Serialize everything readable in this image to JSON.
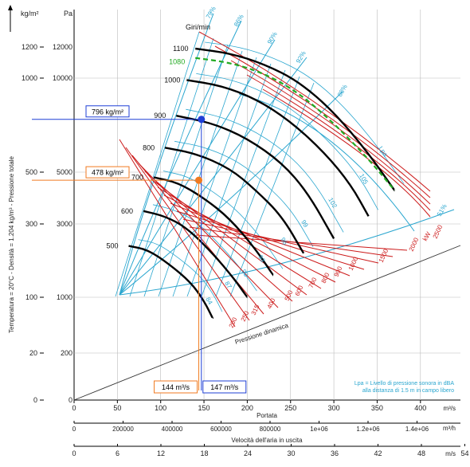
{
  "chart_data": {
    "type": "line",
    "title": "",
    "axes": {
      "left_outer_label": "kg/m²",
      "left_outer_ticks": [
        "1200",
        "1000",
        "500",
        "300",
        "100",
        "20",
        "0"
      ],
      "left_inner_label": "Pa",
      "left_inner_ticks": [
        "12000",
        "10000",
        "5000",
        "3000",
        "1000",
        "200",
        "0"
      ],
      "vertical_title": "Temperatura = 20°C  -  Densità = 1.204 kg/m³  -  Pressione totale",
      "x_label": "Portata",
      "x_unit": "m³/s",
      "x_ticks": [
        "0",
        "50",
        "100",
        "150",
        "200",
        "250",
        "300",
        "350",
        "400"
      ],
      "x2_unit": "m³/h",
      "x2_ticks": [
        "0",
        "200000",
        "400000",
        "600000",
        "800000",
        "1e+06",
        "1.2e+06",
        "1.4e+06"
      ],
      "x3_label": "Velocità dell'aria in uscita",
      "x3_unit": "m/s",
      "x3_ticks": [
        "0",
        "6",
        "12",
        "18",
        "24",
        "30",
        "36",
        "42",
        "48",
        "54"
      ],
      "speed_label": "Giri/min",
      "dynamic_pressure_label": "Pressione dinamica"
    },
    "rpm_curves": [
      {
        "name": "1100",
        "flow": [
          140,
          180,
          220,
          260,
          300,
          340,
          370
        ],
        "pressure_pa": [
          11900,
          11600,
          10900,
          9800,
          8200,
          6000,
          4300
        ]
      },
      {
        "name": "1000",
        "flow": [
          130,
          170,
          210,
          250,
          290,
          320,
          340
        ],
        "pressure_pa": [
          9900,
          9600,
          8900,
          7700,
          6000,
          4500,
          3300
        ]
      },
      {
        "name": "900",
        "flow": [
          118,
          160,
          200,
          240,
          270,
          300
        ],
        "pressure_pa": [
          8000,
          7600,
          6800,
          5500,
          4200,
          2600
        ]
      },
      {
        "name": "800",
        "flow": [
          105,
          140,
          180,
          210,
          240,
          265
        ],
        "pressure_pa": [
          6300,
          6000,
          5200,
          4300,
          3300,
          2200
        ]
      },
      {
        "name": "700",
        "flow": [
          92,
          120,
          150,
          180,
          210,
          230
        ],
        "pressure_pa": [
          4800,
          4600,
          4000,
          3200,
          2300,
          1600
        ]
      },
      {
        "name": "600",
        "flow": [
          80,
          105,
          130,
          160,
          185,
          200
        ],
        "pressure_pa": [
          3500,
          3300,
          2900,
          2200,
          1500,
          1000
        ]
      },
      {
        "name": "500",
        "flow": [
          63,
          85,
          110,
          135,
          150,
          160
        ],
        "pressure_pa": [
          2400,
          2300,
          1900,
          1400,
          950,
          700
        ]
      }
    ],
    "rpm_1080_curve": {
      "name": "1080",
      "flow": [
        140,
        180,
        220,
        260,
        300,
        340,
        370
      ],
      "pressure_pa": [
        11300,
        11000,
        10300,
        9200,
        7600,
        5700,
        4300
      ]
    },
    "power_labels_kw": [
      "200",
      "250",
      "315",
      "400",
      "500",
      "600",
      "700",
      "800",
      "900",
      "1000",
      "1500",
      "2000",
      "2500"
    ],
    "power_unit": "kW",
    "efficiency_labels": [
      "79%",
      "86%",
      "90%",
      "92%",
      "88%",
      "51%"
    ],
    "sound_labels": [
      "84",
      "87",
      "90",
      "93",
      "96",
      "99",
      "102",
      "105"
    ],
    "lpa_label": "Lpa",
    "lpa_note_line1": "Lpa = Livello di pressione sonora in dBA",
    "lpa_note_line2": "alla distanza di 1.5 m in campo libero",
    "operating_points": [
      {
        "pressure_label": "796 kg/m²",
        "flow_label": "147 m³/s",
        "flow": 147,
        "pressure_pa": 7806,
        "color": "#1f3fd6"
      },
      {
        "pressure_label": "478 kg/m²",
        "flow_label": "144 m³/s",
        "flow": 144,
        "pressure_pa": 4688,
        "color": "#f07a20"
      }
    ],
    "colors": {
      "rpm": "#000000",
      "rpm_1080": "#22aa22",
      "power": "#cc1a1a",
      "efficiency": "#2aa6cf",
      "dynamic_pressure": "#333333",
      "grid": "#bbbbbb"
    }
  }
}
